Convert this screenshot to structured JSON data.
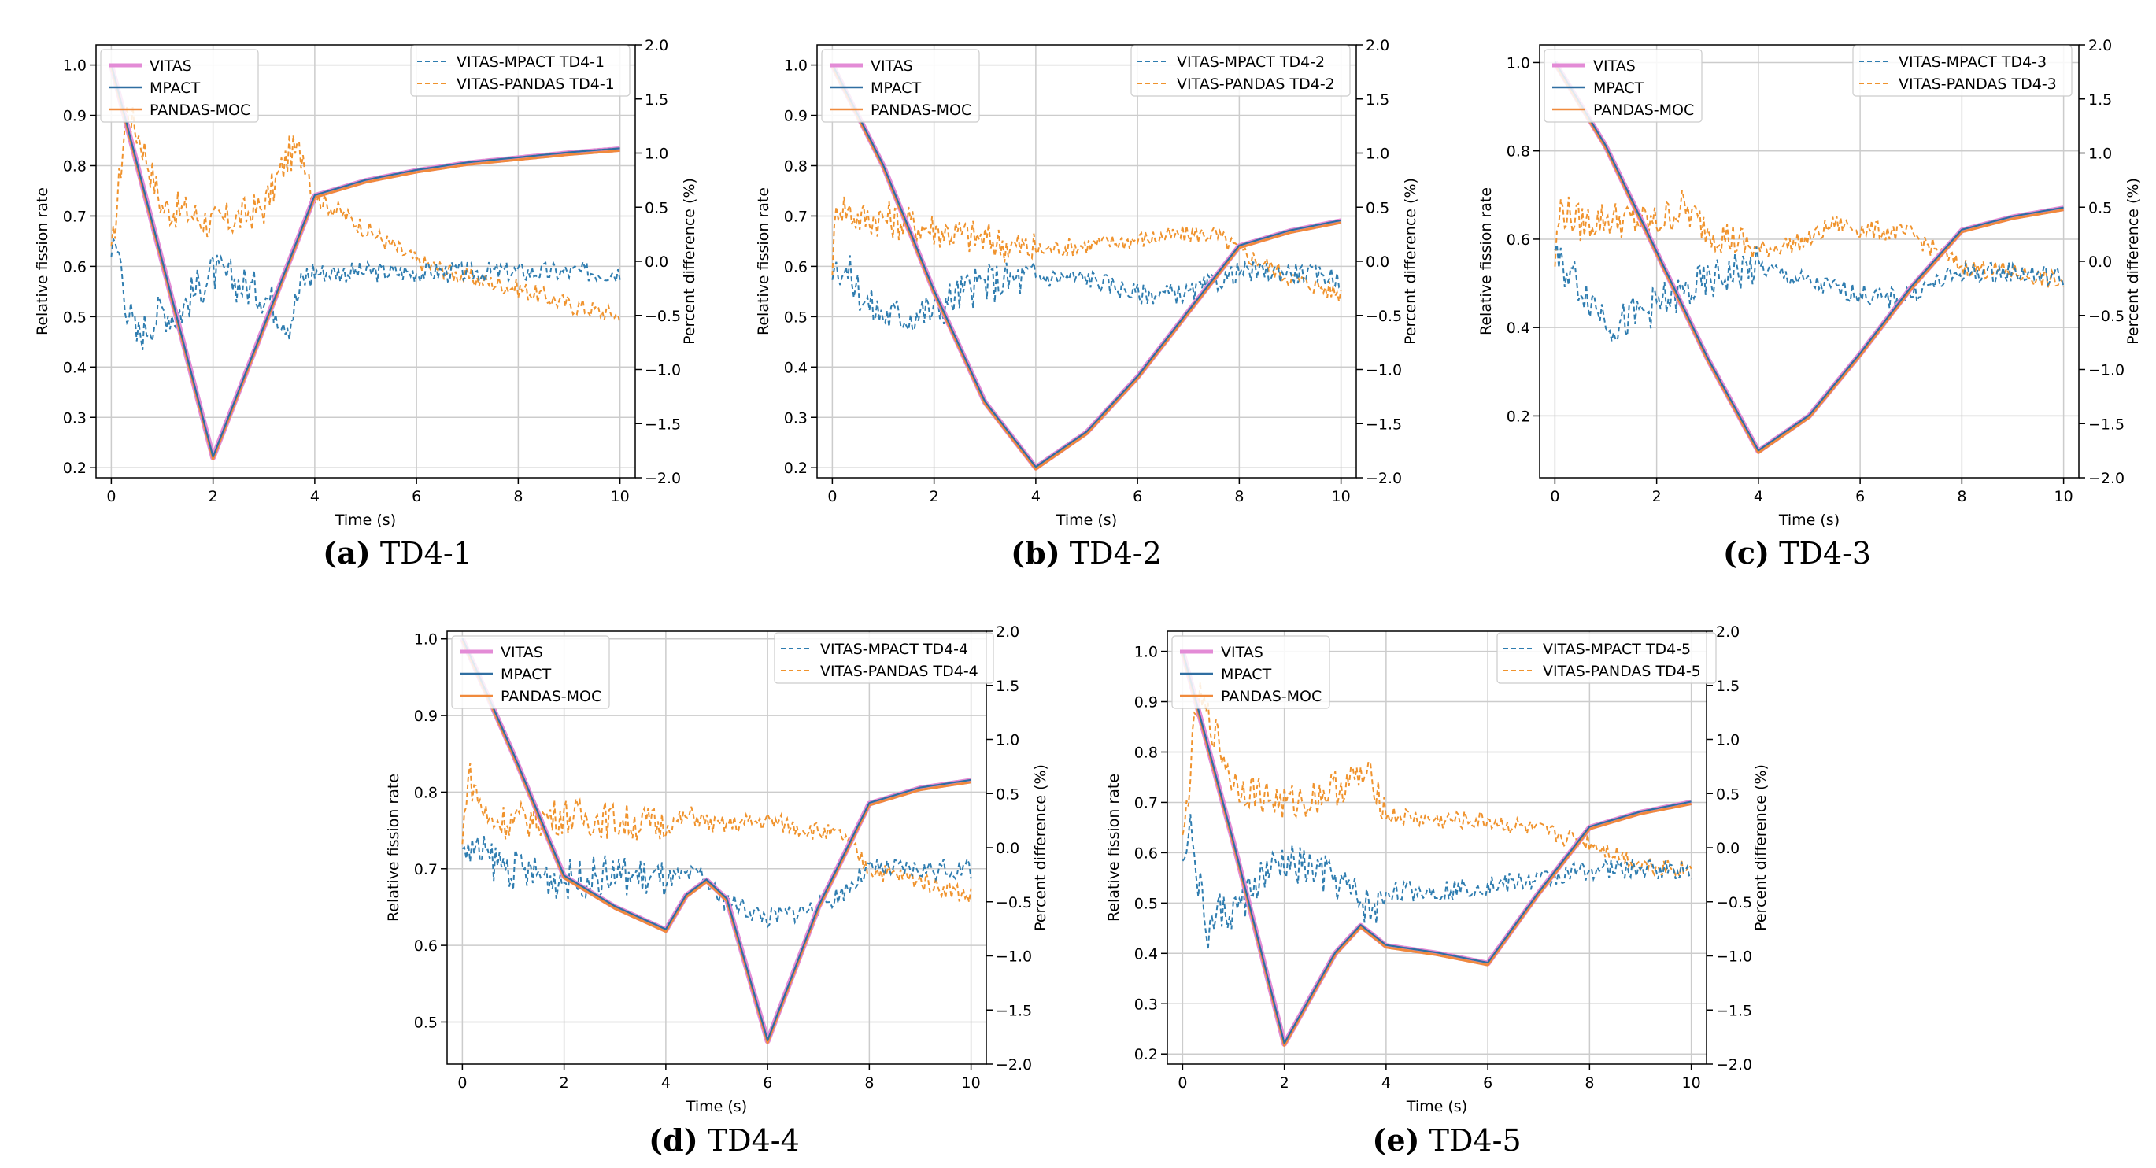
{
  "figure": {
    "colors": {
      "vitas": "#e38bd6",
      "mpact": "#2f6ea1",
      "pandas": "#f08a3c",
      "diff_mpact": "#2f7db0",
      "diff_pandas": "#f0932d",
      "grid": "#cccccc"
    }
  },
  "chart_data": [
    {
      "id": "a",
      "type": "line",
      "caption_letter": "(a)",
      "caption_text": "TD4-1",
      "xlabel": "Time (s)",
      "ylabel": "Relative fission rate",
      "ylabel2": "Percent difference (%)",
      "xlim": [
        -0.3,
        10.3
      ],
      "ylim": [
        0.18,
        1.04
      ],
      "y2lim": [
        -2.0,
        2.0
      ],
      "xticks": [
        0,
        2,
        4,
        6,
        8,
        10
      ],
      "yticks": [
        0.2,
        0.3,
        0.4,
        0.5,
        0.6,
        0.7,
        0.8,
        0.9,
        1.0
      ],
      "ytick_labels": [
        "0.2",
        "0.3",
        "0.4",
        "0.5",
        "0.6",
        "0.7",
        "0.8",
        "0.9",
        "1.0"
      ],
      "y2ticks": [
        -2.0,
        -1.5,
        -1.0,
        -0.5,
        0.0,
        0.5,
        1.0,
        1.5,
        2.0
      ],
      "y2tick_labels": [
        "−2.0",
        "−1.5",
        "−1.0",
        "−0.5",
        "0.0",
        "0.5",
        "1.0",
        "1.5",
        "2.0"
      ],
      "legend_left": [
        "VITAS",
        "MPACT",
        "PANDAS-MOC"
      ],
      "legend_right": [
        "VITAS-MPACT TD4-1",
        "VITAS-PANDAS TD4-1"
      ],
      "fission": {
        "x": [
          0,
          2,
          4,
          5,
          6,
          7,
          8,
          9,
          10
        ],
        "y": [
          1.0,
          0.22,
          0.74,
          0.77,
          0.79,
          0.805,
          0.815,
          0.825,
          0.833
        ]
      },
      "diff_mpact": {
        "x": [
          0,
          0.15,
          0.3,
          0.5,
          0.7,
          1.0,
          1.3,
          1.6,
          2.0,
          2.5,
          3.0,
          3.5,
          3.8,
          4.0,
          5.0,
          6.0,
          7.0,
          8.0,
          9.0,
          10.0
        ],
        "y": [
          0.1,
          0.1,
          -0.4,
          -0.7,
          -0.6,
          -0.45,
          -0.5,
          -0.3,
          -0.1,
          -0.2,
          -0.3,
          -0.55,
          -0.15,
          -0.1,
          -0.1,
          -0.1,
          -0.1,
          -0.1,
          -0.1,
          -0.1
        ]
      },
      "diff_pandas": {
        "x": [
          0,
          0.3,
          0.6,
          1.0,
          1.5,
          2.0,
          2.5,
          3.0,
          3.5,
          3.8,
          4.0,
          5.0,
          6.0,
          7.0,
          8.0,
          9.0,
          10.0
        ],
        "y": [
          0.0,
          1.4,
          1.1,
          0.5,
          0.45,
          0.35,
          0.4,
          0.5,
          1.0,
          1.0,
          0.6,
          0.3,
          0.0,
          -0.15,
          -0.25,
          -0.4,
          -0.5
        ]
      }
    },
    {
      "id": "b",
      "type": "line",
      "caption_letter": "(b)",
      "caption_text": "TD4-2",
      "xlabel": "Time (s)",
      "ylabel": "Relative fission rate",
      "ylabel2": "Percent difference (%)",
      "xlim": [
        -0.3,
        10.3
      ],
      "ylim": [
        0.18,
        1.04
      ],
      "y2lim": [
        -2.0,
        2.0
      ],
      "xticks": [
        0,
        2,
        4,
        6,
        8,
        10
      ],
      "yticks": [
        0.2,
        0.3,
        0.4,
        0.5,
        0.6,
        0.7,
        0.8,
        0.9,
        1.0
      ],
      "ytick_labels": [
        "0.2",
        "0.3",
        "0.4",
        "0.5",
        "0.6",
        "0.7",
        "0.8",
        "0.9",
        "1.0"
      ],
      "y2ticks": [
        -2.0,
        -1.5,
        -1.0,
        -0.5,
        0.0,
        0.5,
        1.0,
        1.5,
        2.0
      ],
      "y2tick_labels": [
        "−2.0",
        "−1.5",
        "−1.0",
        "−0.5",
        "0.0",
        "0.5",
        "1.0",
        "1.5",
        "2.0"
      ],
      "legend_left": [
        "VITAS",
        "MPACT",
        "PANDAS-MOC"
      ],
      "legend_right": [
        "VITAS-MPACT TD4-2",
        "VITAS-PANDAS TD4-2"
      ],
      "fission": {
        "x": [
          0,
          1,
          2,
          3,
          4,
          5,
          6,
          7,
          8,
          9,
          10
        ],
        "y": [
          1.0,
          0.8,
          0.55,
          0.33,
          0.2,
          0.27,
          0.38,
          0.51,
          0.64,
          0.67,
          0.69
        ]
      },
      "diff_mpact": {
        "x": [
          0,
          0.3,
          0.7,
          1.0,
          1.5,
          2.0,
          2.5,
          3.0,
          4.0,
          5.0,
          6.0,
          7.0,
          7.5,
          8.0,
          9.0,
          10.0
        ],
        "y": [
          0.0,
          -0.1,
          -0.4,
          -0.5,
          -0.5,
          -0.45,
          -0.3,
          -0.2,
          -0.15,
          -0.15,
          -0.3,
          -0.3,
          -0.2,
          -0.1,
          -0.1,
          -0.15
        ]
      },
      "diff_pandas": {
        "x": [
          0,
          0.1,
          0.5,
          1.0,
          2.0,
          3.0,
          4.0,
          5.0,
          6.0,
          7.0,
          7.5,
          8.0,
          9.0,
          10.0
        ],
        "y": [
          0.0,
          0.55,
          0.4,
          0.4,
          0.3,
          0.2,
          0.1,
          0.15,
          0.2,
          0.25,
          0.25,
          0.1,
          -0.15,
          -0.3
        ]
      }
    },
    {
      "id": "c",
      "type": "line",
      "caption_letter": "(c)",
      "caption_text": "TD4-3",
      "xlabel": "Time (s)",
      "ylabel": "Relative fission rate",
      "ylabel2": "Percent difference (%)",
      "xlim": [
        -0.3,
        10.3
      ],
      "ylim": [
        0.06,
        1.04
      ],
      "y2lim": [
        -2.0,
        2.0
      ],
      "xticks": [
        0,
        2,
        4,
        6,
        8,
        10
      ],
      "yticks": [
        0.2,
        0.4,
        0.6,
        0.8,
        1.0
      ],
      "ytick_labels": [
        "0.2",
        "0.4",
        "0.6",
        "0.8",
        "1.0"
      ],
      "y2ticks": [
        -2.0,
        -1.5,
        -1.0,
        -0.5,
        0.0,
        0.5,
        1.0,
        1.5,
        2.0
      ],
      "y2tick_labels": [
        "−2.0",
        "−1.5",
        "−1.0",
        "−0.5",
        "0.0",
        "0.5",
        "1.0",
        "1.5",
        "2.0"
      ],
      "legend_left": [
        "VITAS",
        "MPACT",
        "PANDAS-MOC"
      ],
      "legend_right": [
        "VITAS-MPACT TD4-3",
        "VITAS-PANDAS TD4-3"
      ],
      "fission": {
        "x": [
          0,
          1,
          2,
          3,
          4,
          5,
          6,
          7,
          8,
          9,
          10
        ],
        "y": [
          1.0,
          0.81,
          0.57,
          0.33,
          0.12,
          0.2,
          0.34,
          0.49,
          0.62,
          0.65,
          0.67
        ]
      },
      "diff_mpact": {
        "x": [
          0,
          0.3,
          0.8,
          1.2,
          1.6,
          2.0,
          2.5,
          3.0,
          3.5,
          4.0,
          5.0,
          6.0,
          6.5,
          7.0,
          8.0,
          9.0,
          10.0
        ],
        "y": [
          0.0,
          -0.1,
          -0.4,
          -0.6,
          -0.5,
          -0.4,
          -0.3,
          -0.2,
          -0.1,
          -0.05,
          -0.2,
          -0.3,
          -0.35,
          -0.3,
          -0.1,
          -0.1,
          -0.15
        ]
      },
      "diff_pandas": {
        "x": [
          0,
          0.1,
          0.5,
          1.0,
          2.0,
          2.5,
          3.0,
          4.0,
          5.0,
          5.5,
          6.0,
          7.0,
          8.0,
          9.0,
          10.0
        ],
        "y": [
          0.0,
          0.5,
          0.35,
          0.4,
          0.35,
          0.5,
          0.3,
          0.1,
          0.2,
          0.35,
          0.3,
          0.25,
          -0.05,
          -0.1,
          -0.2
        ]
      }
    },
    {
      "id": "d",
      "type": "line",
      "caption_letter": "(d)",
      "caption_text": "TD4-4",
      "xlabel": "Time (s)",
      "ylabel": "Relative fission rate",
      "ylabel2": "Percent difference (%)",
      "xlim": [
        -0.3,
        10.3
      ],
      "ylim": [
        0.445,
        1.01
      ],
      "y2lim": [
        -2.0,
        2.0
      ],
      "xticks": [
        0,
        2,
        4,
        6,
        8,
        10
      ],
      "yticks": [
        0.5,
        0.6,
        0.7,
        0.8,
        0.9,
        1.0
      ],
      "ytick_labels": [
        "0.5",
        "0.6",
        "0.7",
        "0.8",
        "0.9",
        "1.0"
      ],
      "y2ticks": [
        -2.0,
        -1.5,
        -1.0,
        -0.5,
        0.0,
        0.5,
        1.0,
        1.5,
        2.0
      ],
      "y2tick_labels": [
        "−2.0",
        "−1.5",
        "−1.0",
        "−0.5",
        "0.0",
        "0.5",
        "1.0",
        "1.5",
        "2.0"
      ],
      "legend_left": [
        "VITAS",
        "MPACT",
        "PANDAS-MOC"
      ],
      "legend_right": [
        "VITAS-MPACT TD4-4",
        "VITAS-PANDAS TD4-4"
      ],
      "fission": {
        "x": [
          0,
          1,
          2,
          3,
          4,
          4.4,
          4.8,
          5.2,
          6,
          7,
          8,
          9,
          10
        ],
        "y": [
          1.0,
          0.85,
          0.69,
          0.65,
          0.62,
          0.665,
          0.685,
          0.66,
          0.475,
          0.65,
          0.785,
          0.805,
          0.815
        ]
      },
      "diff_mpact": {
        "x": [
          0,
          0.3,
          1.0,
          1.5,
          2.0,
          3.0,
          4.0,
          4.7,
          5.0,
          5.5,
          6.0,
          7.0,
          7.5,
          8.0,
          9.0,
          10.0
        ],
        "y": [
          0.0,
          -0.05,
          -0.2,
          -0.25,
          -0.3,
          -0.25,
          -0.3,
          -0.25,
          -0.45,
          -0.55,
          -0.65,
          -0.55,
          -0.4,
          -0.2,
          -0.2,
          -0.2
        ]
      },
      "diff_pandas": {
        "x": [
          0,
          0.1,
          0.5,
          1.0,
          2.0,
          3.0,
          4.0,
          4.5,
          5.0,
          6.0,
          7.0,
          7.5,
          8.0,
          9.0,
          10.0
        ],
        "y": [
          0.0,
          0.7,
          0.25,
          0.25,
          0.3,
          0.25,
          0.2,
          0.3,
          0.2,
          0.25,
          0.15,
          0.1,
          -0.2,
          -0.3,
          -0.45
        ]
      }
    },
    {
      "id": "e",
      "type": "line",
      "caption_letter": "(e)",
      "caption_text": "TD4-5",
      "xlabel": "Time (s)",
      "ylabel": "Relative fission rate",
      "ylabel2": "Percent difference (%)",
      "xlim": [
        -0.3,
        10.3
      ],
      "ylim": [
        0.18,
        1.04
      ],
      "y2lim": [
        -2.0,
        2.0
      ],
      "xticks": [
        0,
        2,
        4,
        6,
        8,
        10
      ],
      "yticks": [
        0.2,
        0.3,
        0.4,
        0.5,
        0.6,
        0.7,
        0.8,
        0.9,
        1.0
      ],
      "ytick_labels": [
        "0.2",
        "0.3",
        "0.4",
        "0.5",
        "0.6",
        "0.7",
        "0.8",
        "0.9",
        "1.0"
      ],
      "y2ticks": [
        -2.0,
        -1.5,
        -1.0,
        -0.5,
        0.0,
        0.5,
        1.0,
        1.5,
        2.0
      ],
      "y2tick_labels": [
        "−2.0",
        "−1.5",
        "−1.0",
        "−0.5",
        "0.0",
        "0.5",
        "1.0",
        "1.5",
        "2.0"
      ],
      "legend_left": [
        "VITAS",
        "MPACT",
        "PANDAS-MOC"
      ],
      "legend_right": [
        "VITAS-MPACT TD4-5",
        "VITAS-PANDAS TD4-5"
      ],
      "fission": {
        "x": [
          0,
          1,
          2,
          3,
          3.5,
          4,
          5,
          6,
          7,
          8,
          9,
          10
        ],
        "y": [
          1.0,
          0.62,
          0.22,
          0.4,
          0.455,
          0.415,
          0.4,
          0.38,
          0.52,
          0.65,
          0.68,
          0.7
        ]
      },
      "diff_mpact": {
        "x": [
          0,
          0.15,
          0.3,
          0.5,
          0.7,
          1.0,
          1.5,
          2.0,
          2.5,
          3.0,
          3.5,
          3.8,
          4.0,
          5.0,
          6.0,
          7.0,
          8.0,
          9.0,
          10.0
        ],
        "y": [
          0.0,
          0.2,
          -0.3,
          -0.8,
          -0.6,
          -0.6,
          -0.3,
          -0.15,
          -0.2,
          -0.3,
          -0.5,
          -0.6,
          -0.4,
          -0.4,
          -0.35,
          -0.3,
          -0.2,
          -0.2,
          -0.2
        ]
      },
      "diff_pandas": {
        "x": [
          0,
          0.3,
          0.6,
          1.0,
          1.5,
          2.0,
          2.5,
          3.0,
          3.5,
          3.8,
          4.0,
          5.0,
          6.0,
          7.0,
          8.0,
          9.0,
          10.0
        ],
        "y": [
          0.0,
          1.4,
          1.1,
          0.6,
          0.5,
          0.4,
          0.45,
          0.55,
          0.65,
          0.6,
          0.3,
          0.25,
          0.25,
          0.15,
          0.05,
          -0.15,
          -0.2
        ]
      }
    }
  ]
}
